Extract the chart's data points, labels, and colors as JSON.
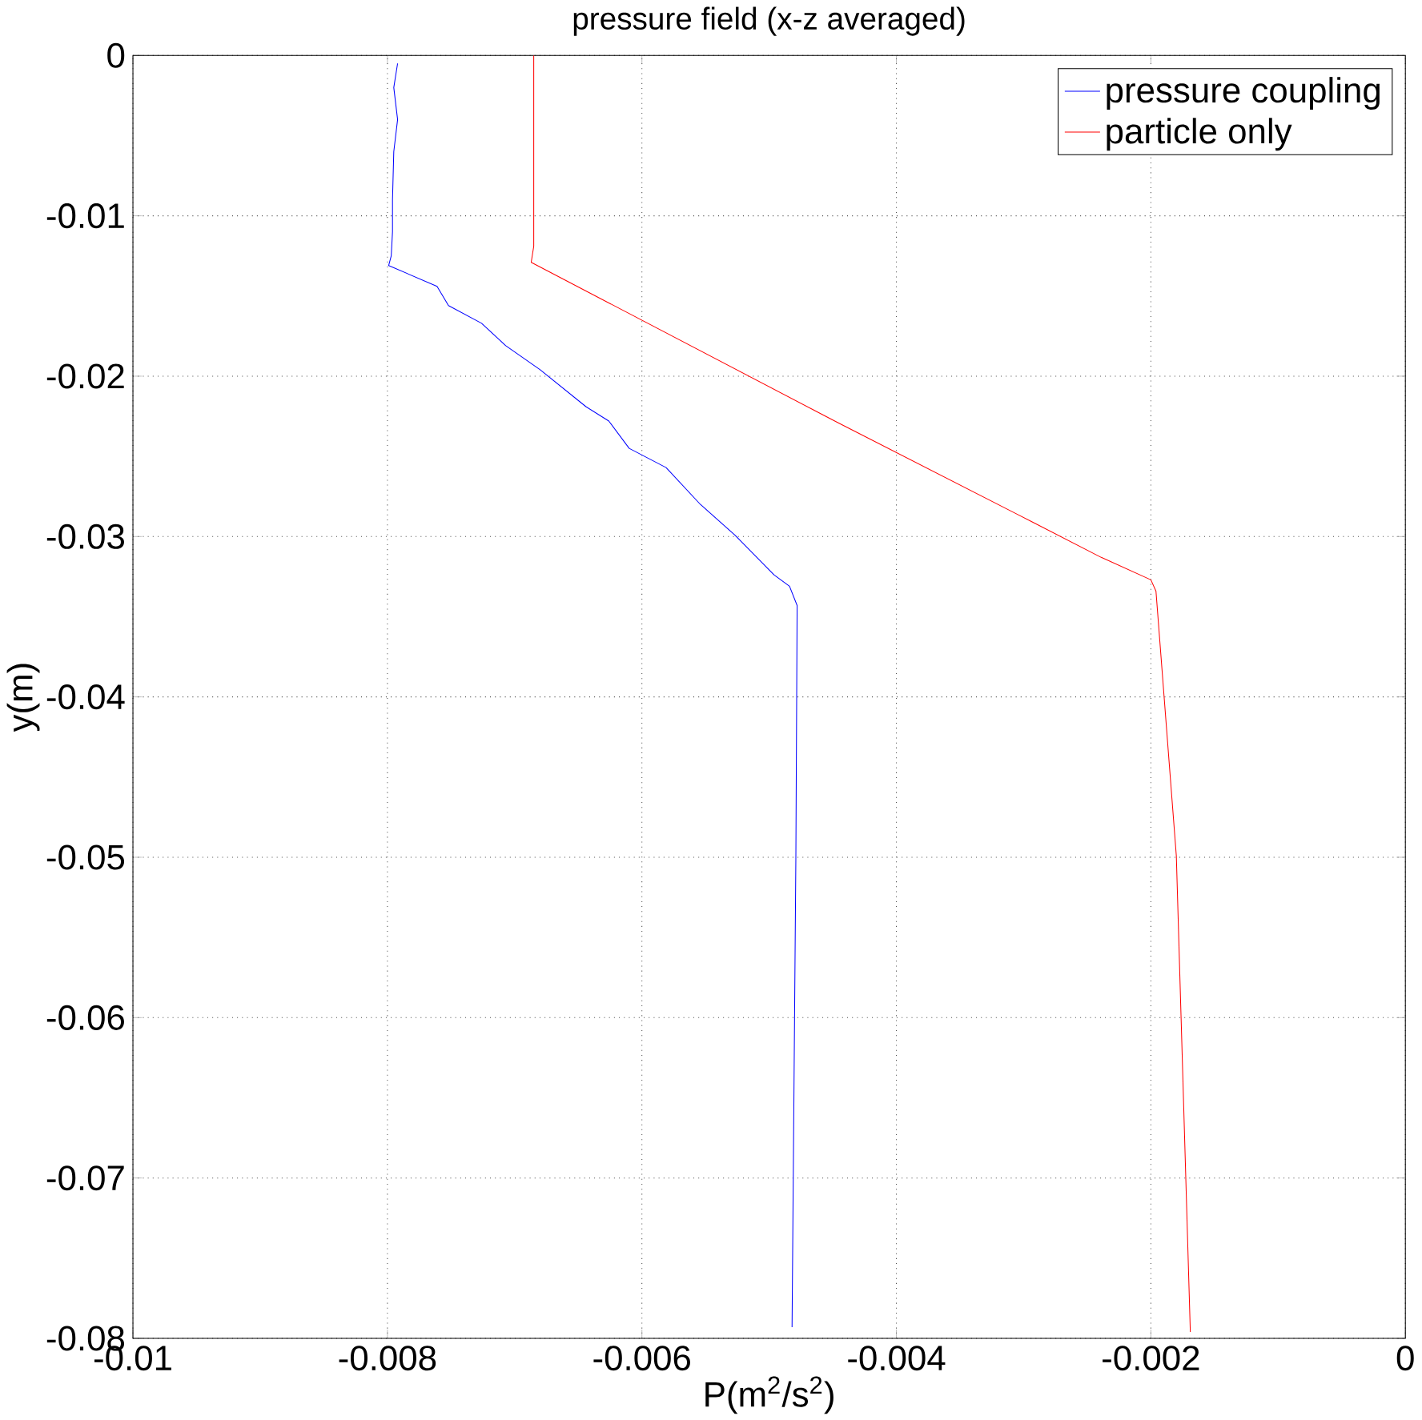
{
  "chart_data": {
    "type": "line",
    "title": "pressure field (x-z averaged)",
    "xlabel": "P(m$^{2}$/s$^{2}$)",
    "ylabel": "y(m)",
    "xlim": [
      -0.01,
      0
    ],
    "ylim": [
      -0.08,
      0
    ],
    "xticks": [
      -0.01,
      -0.008,
      -0.006,
      -0.004,
      -0.002,
      0
    ],
    "yticks": [
      -0.08,
      -0.07,
      -0.06,
      -0.05,
      -0.04,
      -0.03,
      -0.02,
      -0.01,
      0
    ],
    "grid": true,
    "legend": "top right",
    "line_style": "solid",
    "marker": "none",
    "series": [
      {
        "name": "pressure coupling",
        "color": "#0000ff",
        "x": [
          -0.00792,
          -0.00795,
          -0.00792,
          -0.00795,
          -0.00796,
          -0.00796,
          -0.00797,
          -0.00799,
          -0.00761,
          -0.00752,
          -0.00726,
          -0.00707,
          -0.0068,
          -0.00644,
          -0.00626,
          -0.0061,
          -0.00581,
          -0.00554,
          -0.00527,
          -0.00496,
          -0.00484,
          -0.00478,
          -0.00479,
          -0.00482
        ],
        "values": [
          -0.0005,
          -0.002,
          -0.004,
          -0.006,
          -0.009,
          -0.011,
          -0.0125,
          -0.0131,
          -0.0144,
          -0.0156,
          -0.0167,
          -0.0181,
          -0.0196,
          -0.0219,
          -0.0228,
          -0.0245,
          -0.0257,
          -0.028,
          -0.0299,
          -0.0324,
          -0.0331,
          -0.0343,
          -0.05,
          -0.0793
        ]
      },
      {
        "name": "particle only",
        "color": "#ff0000",
        "x": [
          -0.00685,
          -0.00685,
          -0.00687,
          -0.00446,
          -0.00293,
          -0.00239,
          -0.002,
          -0.00196,
          -0.0018,
          -0.00169
        ],
        "values": [
          0,
          -0.0119,
          -0.0129,
          -0.0229,
          -0.0291,
          -0.0313,
          -0.0327,
          -0.0334,
          -0.0499,
          -0.0796
        ]
      }
    ]
  }
}
